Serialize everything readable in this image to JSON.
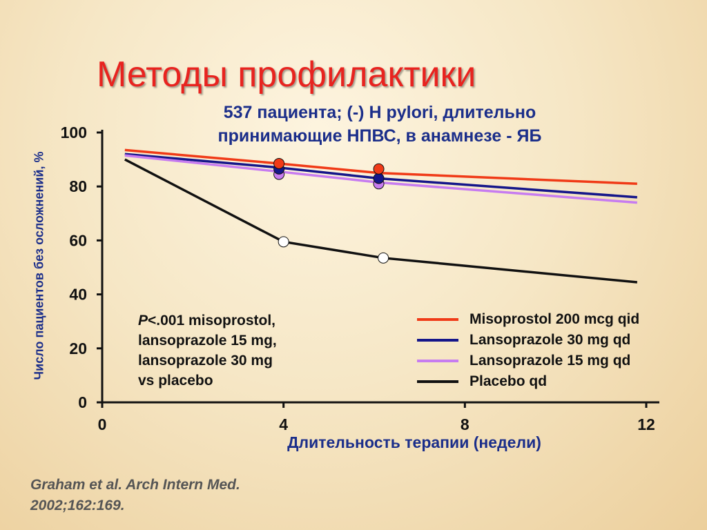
{
  "slide": {
    "title": "Методы профилактики",
    "subtitle_line1": "537 пациента; (-) H pylori, длительно",
    "subtitle_line2": "принимающие НПВС, в анамнезе - ЯБ",
    "citation_line1": "Graham et al. Arch Intern Med.",
    "citation_line2": "2002;162:169."
  },
  "annotation": {
    "p_symbol": "P",
    "line1_rest": "<.001 misoprostol,",
    "line2": "lansoprazole 15 mg,",
    "line3": "lansoprazole 30 mg",
    "line4": "vs placebo"
  },
  "chart_data": {
    "type": "line",
    "title": "537 пациента; (-) H pylori, длительно принимающие НПВС, в анамнезе - ЯБ",
    "xlabel": "Длительность терапии (недели)",
    "ylabel": "Число пациентов без осложнений, %",
    "xlim": [
      0,
      12
    ],
    "ylim": [
      0,
      100
    ],
    "xticks": [
      0,
      4,
      8,
      12
    ],
    "yticks": [
      0,
      20,
      40,
      60,
      80,
      100
    ],
    "xtick_labels": [
      "0",
      "4",
      "8",
      "12"
    ],
    "ytick_labels": [
      "0",
      "20",
      "40",
      "60",
      "80",
      "100"
    ],
    "legend_position": "lower-right",
    "grid": false,
    "series": [
      {
        "name": "Misoprostol 200 mcg qid",
        "color": "#f03a17",
        "x": [
          0.5,
          3.9,
          6.1,
          11.8
        ],
        "y": [
          93.5,
          88.5,
          85,
          81
        ],
        "markers_x": [
          3.9,
          6.1
        ],
        "markers_y": [
          88.5,
          86.5
        ],
        "marker_fill": "#f03a17"
      },
      {
        "name": "Lansoprazole 30 mg qd",
        "color": "#15168a",
        "x": [
          0.5,
          3.9,
          6.1,
          11.8
        ],
        "y": [
          92,
          87,
          83,
          76
        ],
        "markers_x": [
          3.9,
          6.1
        ],
        "markers_y": [
          86.5,
          83
        ],
        "marker_fill": "#15168a"
      },
      {
        "name": "Lansoprazole 15 mg qd",
        "color": "#c77cf0",
        "x": [
          0.5,
          3.9,
          6.1,
          11.8
        ],
        "y": [
          91.5,
          85.5,
          81.5,
          74
        ],
        "markers_x": [
          3.9,
          6.1
        ],
        "markers_y": [
          84.5,
          81
        ],
        "marker_fill": "#c77cf0"
      },
      {
        "name": "Placebo qd",
        "color": "#111111",
        "x": [
          0.5,
          4,
          6.2,
          11.8
        ],
        "y": [
          90,
          59.5,
          53.5,
          44.5
        ],
        "markers_x": [
          4,
          6.2
        ],
        "markers_y": [
          59.5,
          53.5
        ],
        "marker_fill": "#ffffff"
      }
    ]
  }
}
